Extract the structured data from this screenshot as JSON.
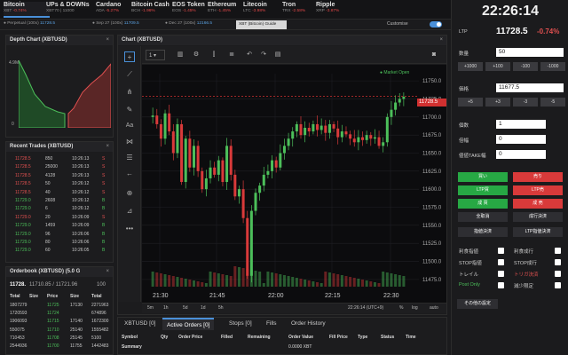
{
  "tickers": [
    {
      "name": "Bitcoin",
      "sub": "XBT",
      "chg": "-0.74%"
    },
    {
      "name": "UPs & DOWNs",
      "sub": "XBT70 | 11000",
      "chg": ""
    },
    {
      "name": "Cardano",
      "sub": "ADA",
      "chg": "-5.27%"
    },
    {
      "name": "Bitcoin Cash",
      "sub": "BCH",
      "chg": "-1.96%"
    },
    {
      "name": "EOS Token",
      "sub": "EOS",
      "chg": "-1.45%"
    },
    {
      "name": "Ethereum",
      "sub": "ETH",
      "chg": "-1.45%"
    },
    {
      "name": "Litecoin",
      "sub": "LTC",
      "chg": "-3.98%"
    },
    {
      "name": "Tron",
      "sub": "TRX",
      "chg": "-2.58%"
    },
    {
      "name": "Ripple",
      "sub": "XRP",
      "chg": "-3.87%"
    }
  ],
  "subbar": {
    "perpetual": "Perpetual (100x)",
    "p_price": "11728.5",
    "sep": "Sep 27 (100x)",
    "sep_price": "11709.5",
    "dec": "Dec 27 (100x)",
    "dec_price": "12166.5",
    "guide": "XBT (Bitcoin) Guide",
    "customise": "Customise"
  },
  "depth": {
    "title": "Depth Chart (XBTUSD)",
    "y_top": "4.9M",
    "y_bot": "0"
  },
  "trades": {
    "title": "Recent Trades (XBTUSD)",
    "rows": [
      [
        "11728.5",
        "850",
        "10:26:13",
        "S"
      ],
      [
        "11728.5",
        "25000",
        "10:26:13",
        "S"
      ],
      [
        "11728.5",
        "4128",
        "10:26:13",
        "S"
      ],
      [
        "11728.5",
        "50",
        "10:26:12",
        "S"
      ],
      [
        "11728.5",
        "40",
        "10:26:12",
        "S"
      ],
      [
        "11729.0",
        "2608",
        "10:26:12",
        "B"
      ],
      [
        "11729.0",
        "6",
        "10:26:12",
        "B"
      ],
      [
        "11729.0",
        "20",
        "10:26:09",
        "S"
      ],
      [
        "11729.0",
        "1459",
        "10:26:09",
        "B"
      ],
      [
        "11729.0",
        "96",
        "10:26:06",
        "B"
      ],
      [
        "11729.0",
        "80",
        "10:26:06",
        "B"
      ],
      [
        "11729.0",
        "60",
        "10:26:05",
        "B"
      ]
    ]
  },
  "orderbook": {
    "title": "Orderbook (XBTUSD) (5.0 G",
    "last": "11728.",
    "mid": "11710.85 / 11721.96",
    "size": "100",
    "cols": [
      "Total",
      "Size",
      "Price",
      "Size",
      "Total"
    ],
    "rows": [
      [
        "1807279",
        "",
        "11725",
        "17130",
        "2271963"
      ],
      [
        "1720593",
        "",
        "11724",
        "",
        "674896"
      ],
      [
        "1906093",
        "",
        "11715",
        "17140",
        "1672300"
      ],
      [
        "550075",
        "",
        "11710",
        "25140",
        "1555482"
      ],
      [
        "710453",
        "",
        "11708",
        "25145",
        "5100"
      ],
      [
        "2544936",
        "",
        "11700",
        "11755",
        "1442483"
      ]
    ]
  },
  "chart": {
    "title": "Chart (XBTUSD)",
    "interval": "1",
    "market": "Market Open",
    "last_price": "11728.5",
    "xticks": [
      "21:30",
      "21:45",
      "22:00",
      "22:15",
      "22:30"
    ],
    "yticks": [
      "11750.0",
      "11725.0",
      "11700.0",
      "11675.0",
      "11650.0",
      "11625.0",
      "11600.0",
      "11575.0",
      "11550.0",
      "11525.0",
      "11500.0",
      "11475.0"
    ],
    "ranges": [
      "5m",
      "1h",
      "5d",
      "1d",
      "5h"
    ],
    "clock": "22:26:14 (UTC+9)",
    "pct": "%",
    "log": "log",
    "auto": "auto"
  },
  "chart_data": {
    "type": "candlestick",
    "ylim": [
      11465,
      11760
    ]
  },
  "orders": {
    "tabs": [
      "XBTUSD [0]",
      "Active Orders [0]",
      "Stops [0]",
      "Fills",
      "Order History"
    ],
    "cols": [
      "Symbol",
      "Qty",
      "Order Price",
      "Filled",
      "Remaining",
      "Order Value",
      "Fill Price",
      "Type",
      "Status",
      "Time"
    ],
    "summary": "Summary",
    "value": "0.0000 XBT"
  },
  "right": {
    "clock": "22:26:14",
    "ltp_label": "LTP",
    "ltp": "11728.5",
    "ltp_chg": "-0.74%",
    "qty_label": "数量",
    "qty": "50",
    "qty_btns": [
      "+1000",
      "+100",
      "-100",
      "-1000"
    ],
    "price_label": "価格",
    "price": "11677.5",
    "price_btns": [
      "+5",
      "+3",
      "-3",
      "-5"
    ],
    "count_label": "個数",
    "count": "1",
    "mult_label": "倍幅",
    "mult": "0",
    "take_label": "値値TAKE幅",
    "take": "0",
    "buy_btns": [
      "買い",
      "売り",
      "LTP買",
      "LTP売",
      "成 買",
      "成 売"
    ],
    "misc_btns": [
      "全取消",
      "成行決済",
      "指値決済",
      "LTP指値決済"
    ],
    "checks": [
      "利食指値",
      "利食成行",
      "STOP指値",
      "STOP成行",
      "トレイル",
      "トリガ決済",
      "Post Only",
      "減少限定"
    ],
    "other": "その他の設定"
  }
}
